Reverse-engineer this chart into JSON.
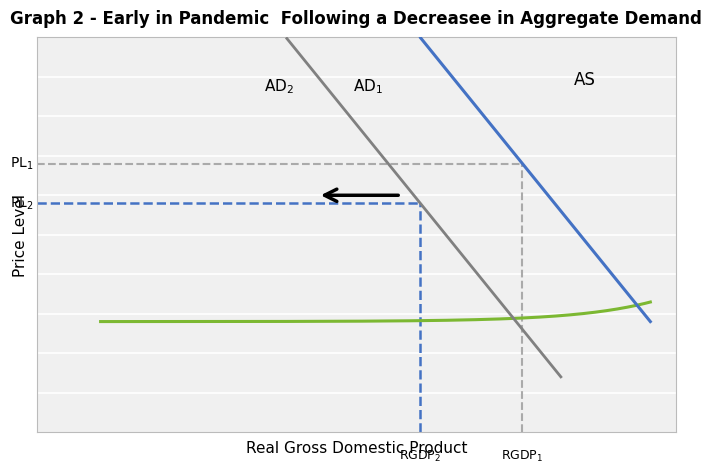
{
  "title": "Graph 2 - Early in Pandemic  Following a Decreasee in Aggregate Demand",
  "xlabel": "Real Gross Domestic Product",
  "ylabel": "Price Level",
  "background_color": "#ffffff",
  "plot_bg_color": "#f0f0f0",
  "title_fontsize": 12,
  "label_fontsize": 11,
  "PL1": 0.68,
  "PL2": 0.58,
  "RGDP1": 0.76,
  "RGDP2": 0.6,
  "AS_color": "#7cb832",
  "AD1_color": "#4472c4",
  "AD2_color": "#808080",
  "PL1_color": "#aaaaaa",
  "PL2_color": "#4472c4",
  "RGDP1_color": "#aaaaaa",
  "RGDP2_color": "#4472c4",
  "n_gridlines": 9
}
